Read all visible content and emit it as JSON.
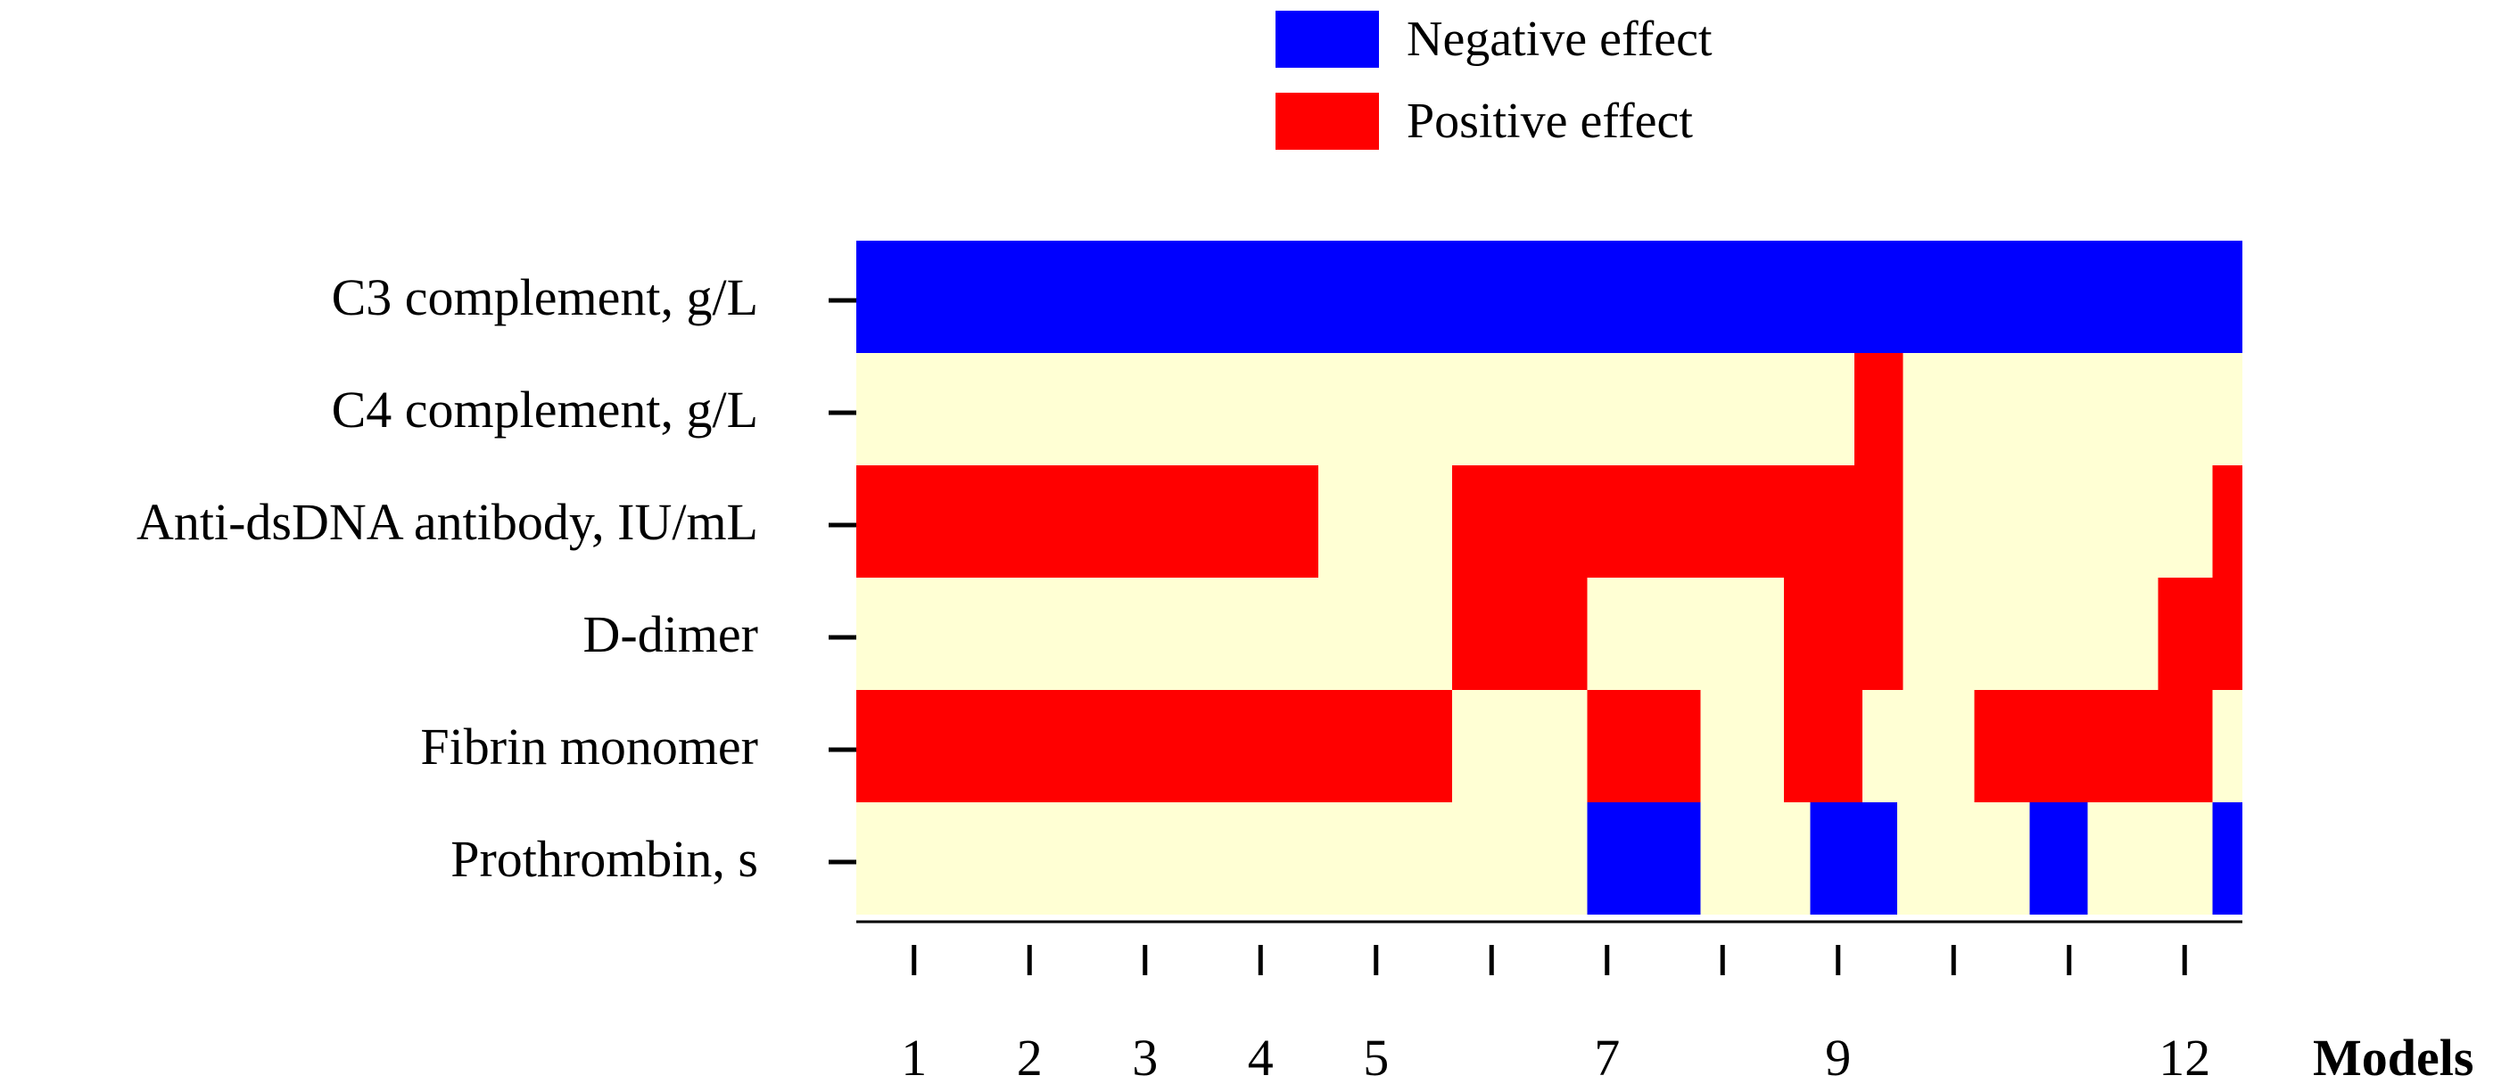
{
  "chart_data": {
    "type": "heatmap",
    "title": "",
    "xlabel": "Models",
    "ylabel": "",
    "legend_position": "top-right",
    "legend": [
      {
        "key": "negative",
        "label": "Negative effect",
        "color": "#0000ff"
      },
      {
        "key": "positive",
        "label": "Positive effect",
        "color": "#ff0000"
      }
    ],
    "neutral_color": "#ffffd4",
    "rows": [
      "C3 complement, g/L",
      "C4 complement, g/L",
      "Anti-dsDNA antibody, IU/mL",
      "D-dimer",
      "Fibrin monomer",
      "Prothrombin, s"
    ],
    "x_range": [
      0,
      12
    ],
    "x_ticks": [
      {
        "value": 1,
        "label": "1"
      },
      {
        "value": 2,
        "label": "2"
      },
      {
        "value": 3,
        "label": "3"
      },
      {
        "value": 4,
        "label": "4"
      },
      {
        "value": 5,
        "label": "5"
      },
      {
        "value": 6,
        "label": ""
      },
      {
        "value": 7,
        "label": "7"
      },
      {
        "value": 8,
        "label": ""
      },
      {
        "value": 9,
        "label": "9"
      },
      {
        "value": 10,
        "label": ""
      },
      {
        "value": 11,
        "label": ""
      },
      {
        "value": 12,
        "label": "12"
      }
    ],
    "segments": [
      {
        "row": 0,
        "start": 0.0,
        "end": 12.0,
        "effect": "negative"
      },
      {
        "row": 1,
        "start": 8.64,
        "end": 9.06,
        "effect": "positive"
      },
      {
        "row": 2,
        "start": 0.0,
        "end": 4.0,
        "effect": "positive"
      },
      {
        "row": 2,
        "start": 5.16,
        "end": 9.06,
        "effect": "positive"
      },
      {
        "row": 2,
        "start": 11.74,
        "end": 12.0,
        "effect": "positive"
      },
      {
        "row": 3,
        "start": 5.16,
        "end": 6.33,
        "effect": "positive"
      },
      {
        "row": 3,
        "start": 8.03,
        "end": 9.06,
        "effect": "positive"
      },
      {
        "row": 3,
        "start": 11.27,
        "end": 12.0,
        "effect": "positive"
      },
      {
        "row": 4,
        "start": 0.0,
        "end": 5.16,
        "effect": "positive"
      },
      {
        "row": 4,
        "start": 6.33,
        "end": 7.31,
        "effect": "positive"
      },
      {
        "row": 4,
        "start": 8.03,
        "end": 8.71,
        "effect": "positive"
      },
      {
        "row": 4,
        "start": 9.68,
        "end": 11.74,
        "effect": "positive"
      },
      {
        "row": 5,
        "start": 6.33,
        "end": 7.31,
        "effect": "negative"
      },
      {
        "row": 5,
        "start": 8.26,
        "end": 9.01,
        "effect": "negative"
      },
      {
        "row": 5,
        "start": 10.16,
        "end": 10.66,
        "effect": "negative"
      },
      {
        "row": 5,
        "start": 11.74,
        "end": 12.0,
        "effect": "negative"
      }
    ]
  }
}
